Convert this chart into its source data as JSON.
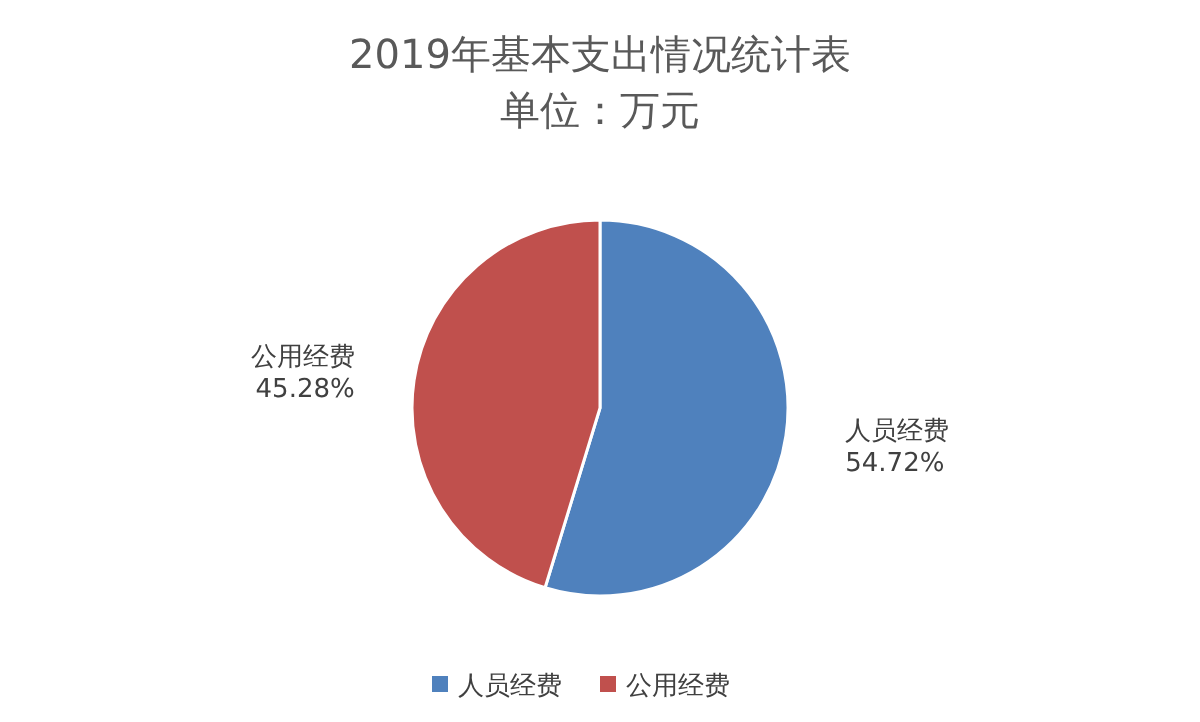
{
  "chart_data": {
    "type": "pie",
    "title": "2019年基本支出情况统计表",
    "subtitle": "单位：万元",
    "categories": [
      "人员经费",
      "公用经费"
    ],
    "values": [
      54.72,
      45.28
    ],
    "value_labels": [
      "54.72%",
      "45.28%"
    ],
    "colors": [
      "#4f81bd",
      "#c0504d"
    ],
    "legend": "bottom"
  }
}
